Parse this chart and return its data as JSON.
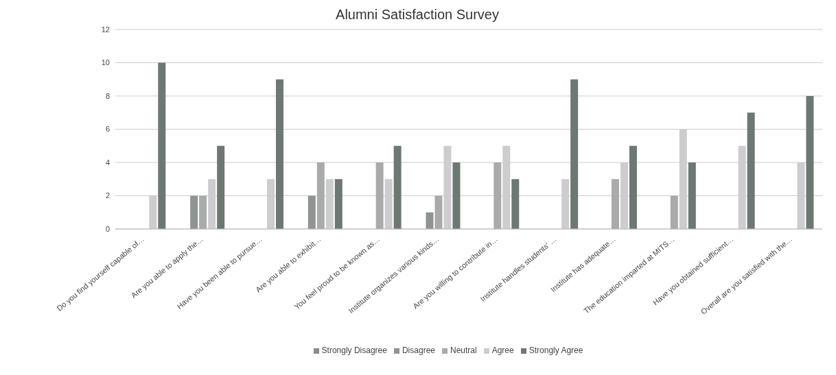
{
  "chart_data": {
    "type": "bar",
    "title": "Alumni Satisfaction Survey",
    "categories": [
      "Do you find yourself capable of…",
      "Are you able to apply the…",
      "Have you been able to pursue…",
      "Are you able to exhibit…",
      "You feel proud to be known as…",
      "Institute organizes various kinds…",
      "Are you willing to contribute in…",
      "Institute handles students' …",
      "Institute has adequate…",
      "The education imparted at MITS…",
      "Have you obtained sufficient…",
      "Overall are you satisfied with the…"
    ],
    "series": [
      {
        "name": "Strongly Disagree",
        "color": "#8c8c8c",
        "values": [
          0,
          0,
          0,
          0,
          0,
          0,
          0,
          0,
          0,
          0,
          0,
          0
        ]
      },
      {
        "name": "Disagree",
        "color": "#8f9490",
        "values": [
          0,
          2,
          0,
          2,
          0,
          1,
          0,
          0,
          0,
          0,
          0,
          0
        ]
      },
      {
        "name": "Neutral",
        "color": "#a9abaa",
        "values": [
          0,
          2,
          0,
          4,
          4,
          2,
          4,
          0,
          3,
          2,
          0,
          0
        ]
      },
      {
        "name": "Agree",
        "color": "#cdcdd0",
        "values": [
          2,
          3,
          3,
          3,
          3,
          5,
          5,
          3,
          4,
          6,
          5,
          4
        ]
      },
      {
        "name": "Strongly Agree",
        "color": "#6e7873",
        "values": [
          10,
          5,
          9,
          3,
          5,
          4,
          3,
          9,
          5,
          4,
          7,
          8
        ]
      }
    ],
    "ylim": [
      0,
      12
    ],
    "yticks": [
      0,
      2,
      4,
      6,
      8,
      10,
      12
    ],
    "grid": "y",
    "legend": "bottom"
  }
}
